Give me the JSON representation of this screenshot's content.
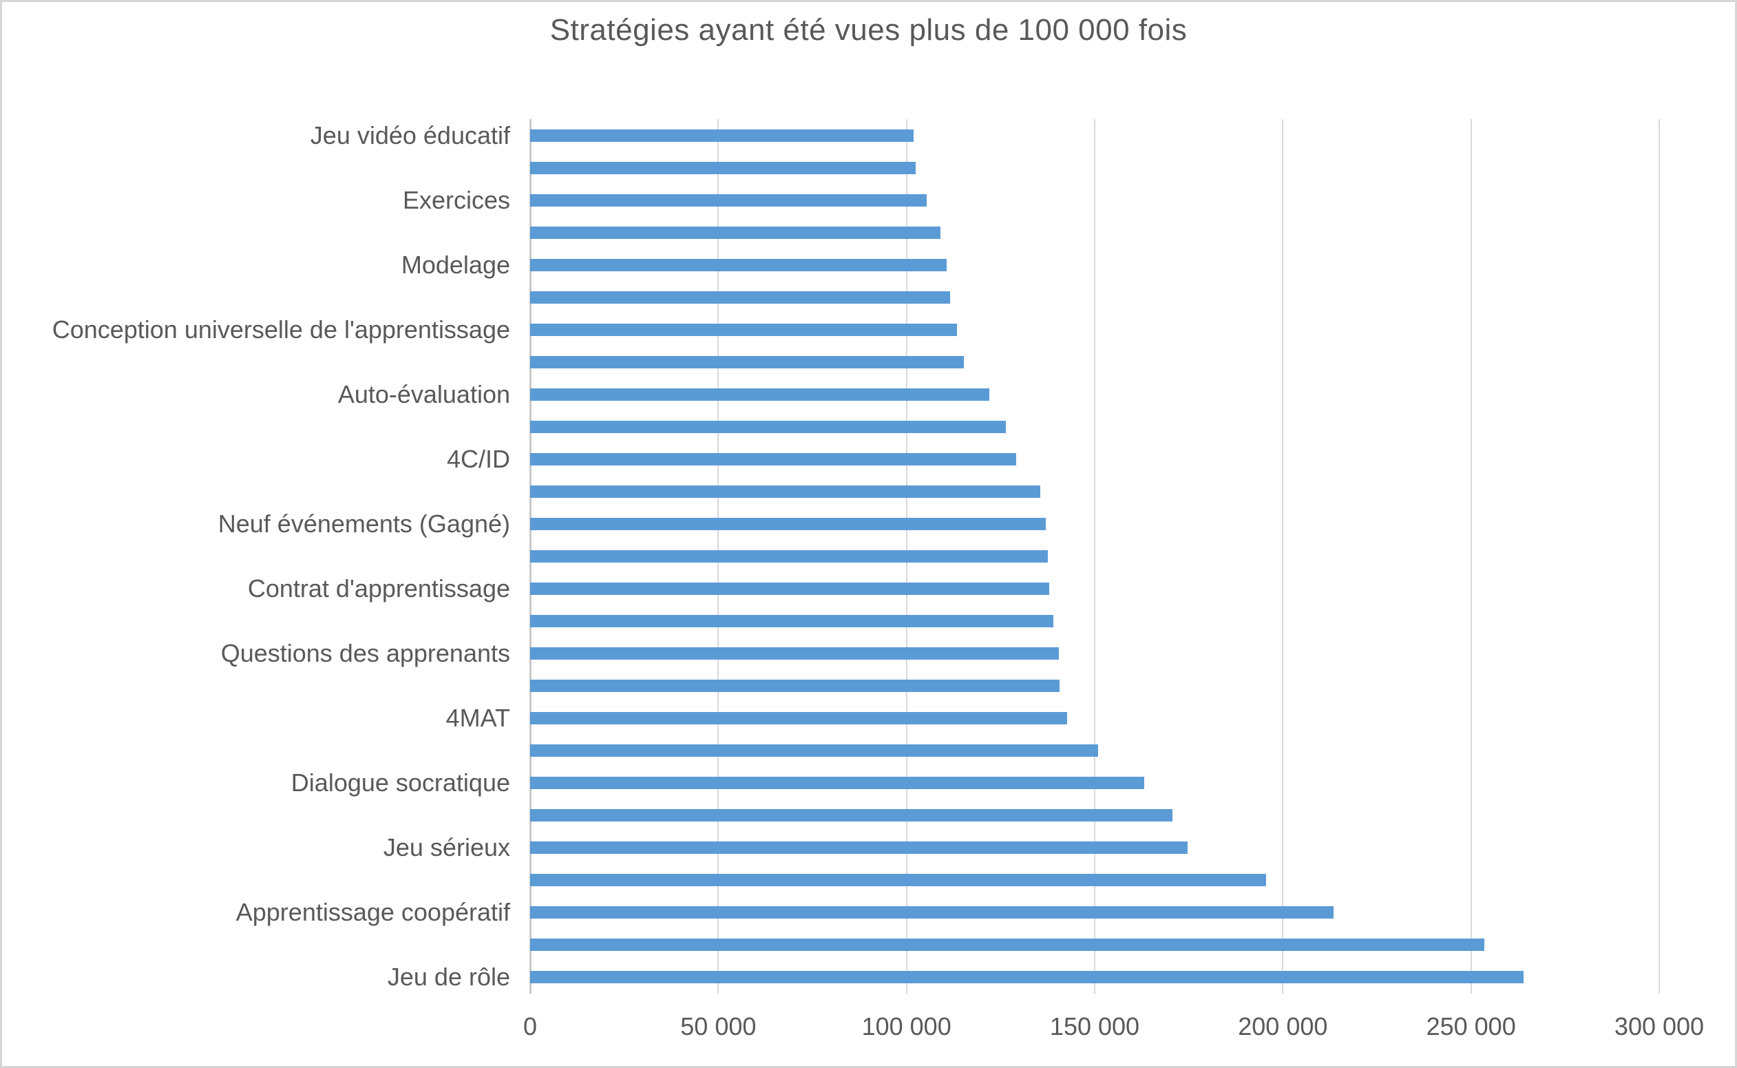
{
  "chart_data": {
    "type": "bar",
    "orientation": "horizontal",
    "title": "Stratégies ayant été vues plus de 100 000 fois",
    "legend": "none",
    "grid": "vertical",
    "categories": [
      "Jeu vidéo éducatif",
      "",
      "Exercices",
      "",
      "Modelage",
      "",
      "Conception universelle de l'apprentissage",
      "",
      "Auto-évaluation",
      "",
      "4C/ID",
      "",
      "Neuf événements (Gagné)",
      "",
      "Contrat d'apprentissage",
      "",
      "Questions des apprenants",
      "",
      "4MAT",
      "",
      "Dialogue socratique",
      "",
      "Jeu sérieux",
      "",
      "Apprentissage coopératif",
      "",
      "Jeu de rôle"
    ],
    "values": [
      101800,
      102400,
      105400,
      109100,
      110600,
      111500,
      113500,
      115200,
      122000,
      126400,
      129200,
      135500,
      137100,
      137600,
      138000,
      139100,
      140500,
      140600,
      142700,
      151000,
      163200,
      170700,
      174700,
      195600,
      213400,
      253600,
      264000
    ],
    "x_axis": {
      "min": 0,
      "max": 300000,
      "tick_interval": 50000,
      "tick_labels": [
        "0",
        "50 000",
        "100 000",
        "150 000",
        "200 000",
        "250 000",
        "300 000"
      ]
    }
  },
  "colors": {
    "bar": "#5b9bd5",
    "text": "#595959",
    "gridline": "#d9d9d9",
    "axis_line": "#c9c9c9",
    "border": "#d6d6d6",
    "background": "#ffffff"
  }
}
